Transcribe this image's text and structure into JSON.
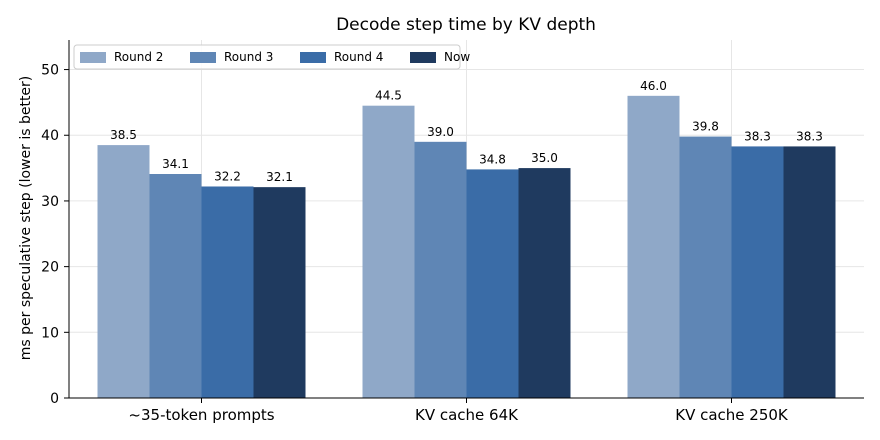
{
  "chart_data": {
    "type": "bar",
    "title": "Decode step time by KV depth",
    "xlabel": "",
    "ylabel": "ms per speculative step (lower is better)",
    "categories": [
      "~35-token prompts",
      "KV cache 64K",
      "KV cache 250K"
    ],
    "series": [
      {
        "name": "Round 2",
        "values": [
          38.5,
          44.5,
          46.0
        ],
        "color": "#8fa8c8"
      },
      {
        "name": "Round 3",
        "values": [
          34.1,
          39.0,
          39.8
        ],
        "color": "#5f86b5"
      },
      {
        "name": "Round 4",
        "values": [
          32.2,
          34.8,
          38.3
        ],
        "color": "#3a6ca7"
      },
      {
        "name": "Now",
        "values": [
          32.1,
          35.0,
          38.3
        ],
        "color": "#1f3a5f"
      }
    ],
    "ylim": [
      0,
      54.5
    ],
    "yticks": [
      0,
      10,
      20,
      30,
      40,
      50
    ],
    "value_labels": [
      [
        "38.5",
        "44.5",
        "46.0"
      ],
      [
        "34.1",
        "39.0",
        "39.8"
      ],
      [
        "32.2",
        "34.8",
        "38.3"
      ],
      [
        "32.1",
        "35.0",
        "38.3"
      ]
    ],
    "grid": true,
    "legend_position": "top-left"
  }
}
